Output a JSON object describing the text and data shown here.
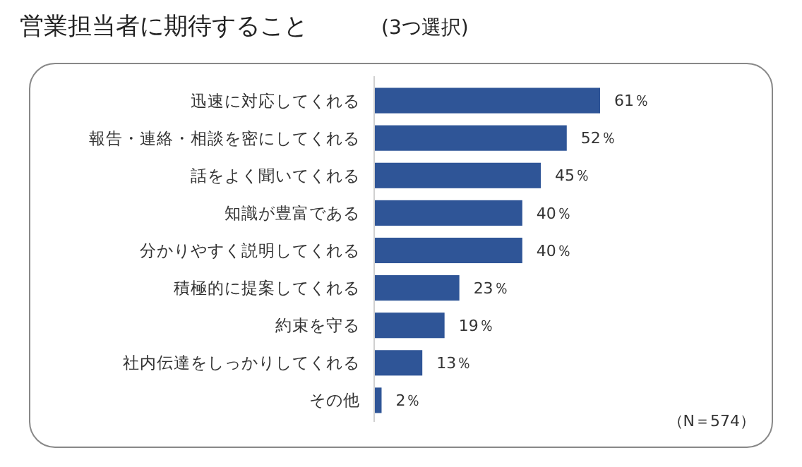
{
  "chart_data": {
    "type": "bar",
    "orientation": "horizontal",
    "title": "営業担当者に期待すること",
    "subtitle": "(3つ選択)",
    "categories": [
      "迅速に対応してくれる",
      "報告・連絡・相談を密にしてくれる",
      "話をよく聞いてくれる",
      "知識が豊富である",
      "分かりやすく説明してくれる",
      "積極的に提案してくれる",
      "約束を守る",
      "社内伝達をしっかりしてくれる",
      "その他"
    ],
    "values": [
      61,
      52,
      45,
      40,
      40,
      23,
      19,
      13,
      2
    ],
    "value_labels": [
      "61％",
      "52％",
      "45％",
      "40％",
      "40％",
      "23％",
      "19％",
      "13％",
      "2％"
    ],
    "color": "#2f5597",
    "annotations": [
      "（N＝574）"
    ]
  }
}
